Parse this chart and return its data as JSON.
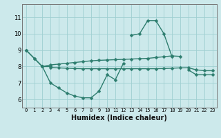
{
  "x": [
    0,
    1,
    2,
    3,
    4,
    5,
    6,
    7,
    8,
    9,
    10,
    11,
    12,
    13,
    14,
    15,
    16,
    17,
    18,
    19,
    20,
    21,
    22,
    23
  ],
  "lineA": [
    9.0,
    8.5,
    8.0,
    8.0,
    null,
    null,
    null,
    null,
    null,
    null,
    null,
    null,
    null,
    9.9,
    10.0,
    10.8,
    10.8,
    10.0,
    8.6,
    null,
    7.8,
    7.5,
    7.5,
    7.5
  ],
  "lineB": [
    null,
    null,
    8.0,
    8.1,
    8.15,
    8.2,
    8.25,
    8.3,
    8.35,
    8.38,
    8.4,
    8.42,
    8.44,
    8.46,
    8.48,
    8.5,
    8.55,
    8.6,
    8.65,
    8.62,
    null,
    null,
    null,
    null
  ],
  "lineC": [
    null,
    null,
    null,
    7.95,
    7.92,
    7.9,
    7.88,
    7.87,
    7.87,
    7.87,
    7.87,
    7.87,
    7.87,
    7.87,
    7.87,
    7.87,
    7.87,
    7.88,
    7.9,
    7.92,
    7.93,
    7.8,
    7.75,
    7.75
  ],
  "lineD": [
    9.0,
    8.5,
    8.0,
    7.0,
    6.7,
    6.4,
    6.2,
    6.1,
    6.1,
    6.5,
    7.5,
    7.2,
    8.2,
    null,
    null,
    null,
    null,
    null,
    null,
    null,
    null,
    null,
    null,
    null
  ],
  "line_color": "#2d7d6e",
  "bg_color": "#cce9eb",
  "grid_color": "#9fcfd1",
  "xlabel": "Humidex (Indice chaleur)",
  "ylim": [
    5.5,
    11.8
  ],
  "xlim": [
    -0.5,
    23.5
  ],
  "xticks": [
    0,
    1,
    2,
    3,
    4,
    5,
    6,
    7,
    8,
    9,
    10,
    11,
    12,
    13,
    14,
    15,
    16,
    17,
    18,
    19,
    20,
    21,
    22,
    23
  ],
  "yticks": [
    6,
    7,
    8,
    9,
    10,
    11
  ],
  "markersize": 2.5,
  "linewidth": 1.0
}
